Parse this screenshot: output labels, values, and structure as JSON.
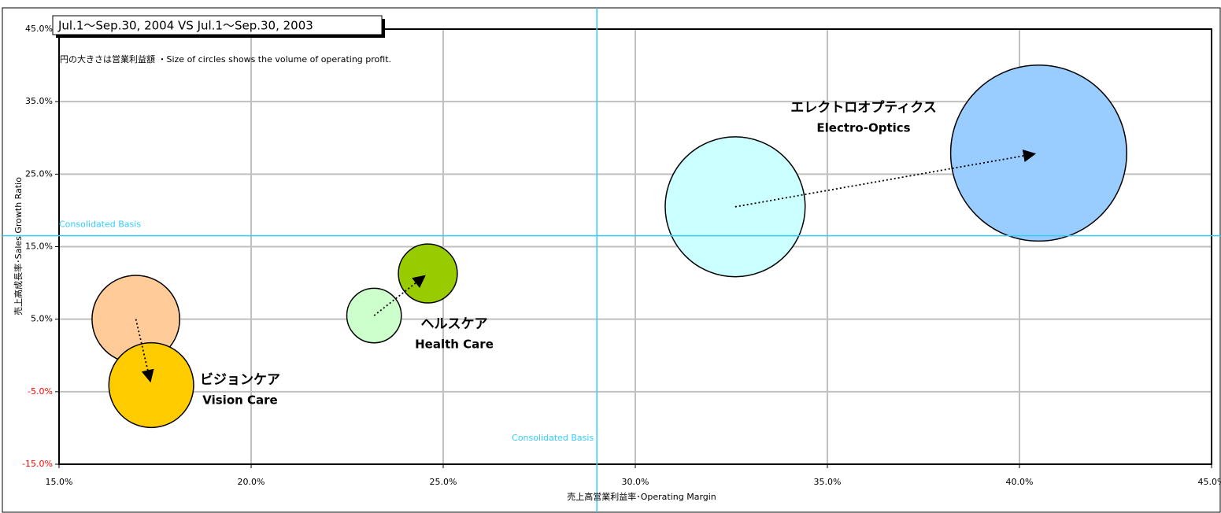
{
  "chart_data": {
    "type": "bubble",
    "period": "Jul.1～Sep.30, 2004 VS Jul.1～Sep.30, 2003",
    "note": "円の大きさは営業利益額 ・Size of circles shows the volume of operating profit.",
    "x_label": "売上高営業利益率･Operating Margin",
    "y_label": "売上高成長率･Sales Growth Ratio",
    "xlim": [
      15,
      45
    ],
    "ylim": [
      -15,
      45
    ],
    "xticks": [
      {
        "value": 15,
        "label": "15.0%"
      },
      {
        "value": 20,
        "label": "20.0%"
      },
      {
        "value": 25,
        "label": "25.0%"
      },
      {
        "value": 30,
        "label": "30.0%"
      },
      {
        "value": 35,
        "label": "35.0%"
      },
      {
        "value": 40,
        "label": "40.0%"
      },
      {
        "value": 45,
        "label": "45.0%"
      }
    ],
    "yticks": [
      {
        "value": -15,
        "label": "-15.0%"
      },
      {
        "value": -5,
        "label": "-5.0%"
      },
      {
        "value": 5,
        "label": "5.0%"
      },
      {
        "value": 15,
        "label": "15.0%"
      },
      {
        "value": 25,
        "label": "25.0%"
      },
      {
        "value": 35,
        "label": "35.0%"
      },
      {
        "value": 45,
        "label": "45.0%"
      }
    ],
    "grid": true,
    "negative_tick_color": "#ff0000",
    "reference_lines": [
      {
        "axis": "x",
        "value": 29.0,
        "label": "Consolidated Basis",
        "color": "#33ccff"
      },
      {
        "axis": "y",
        "value": 16.5,
        "label": "Consolidated Basis",
        "color": "#33ccff"
      }
    ],
    "series": [
      {
        "name_ja": "エレクトロオプティクス",
        "name": "Electro-Optics",
        "x": [
          32.6,
          40.5
        ],
        "values": [
          20.5,
          27.9
        ],
        "sizes": [
          79,
          125
        ],
        "colors": [
          "#ccffff",
          "#99ccff"
        ]
      },
      {
        "name_ja": "ヘルスケア",
        "name": "Health Care",
        "x": [
          23.2,
          24.6
        ],
        "values": [
          5.5,
          11.3
        ],
        "sizes": [
          12,
          14
        ],
        "colors": [
          "#ccffcc",
          "#99cc00"
        ]
      },
      {
        "name_ja": "ビジョンケア",
        "name": "Vision Care",
        "x": [
          17.0,
          17.4
        ],
        "values": [
          5.0,
          -4.1
        ],
        "sizes": [
          31,
          29
        ],
        "colors": [
          "#ffcc99",
          "#ffcc00"
        ]
      }
    ]
  }
}
